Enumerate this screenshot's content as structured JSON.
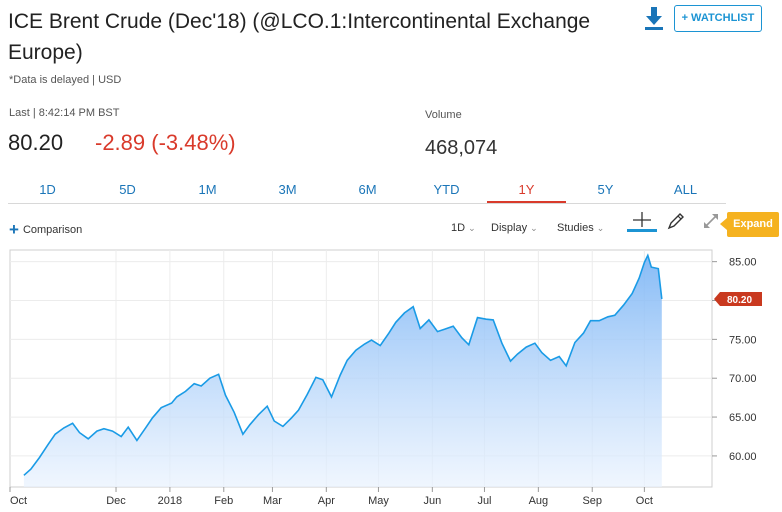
{
  "header": {
    "title": "ICE Brent Crude (Dec'18) (@LCO.1:Intercontinental Exchange Europe)",
    "note": "*Data is delayed | USD",
    "watchlist_label": "+ WATCHLIST",
    "download_icon": "download-icon"
  },
  "quote": {
    "last_label": "Last | 8:42:14 PM BST",
    "price": "80.20",
    "change": "-2.89 (-3.48%)",
    "volume_label": "Volume",
    "volume": "468,074",
    "down_color": "#d93a2b"
  },
  "range_tabs": {
    "items": [
      "1D",
      "5D",
      "1M",
      "3M",
      "6M",
      "YTD",
      "1Y",
      "5Y",
      "ALL"
    ],
    "active": "1Y"
  },
  "toolbar": {
    "comparison_label": "Comparison",
    "interval_label": "1D",
    "display_label": "Display",
    "studies_label": "Studies",
    "expand_label": "Expand",
    "icons": [
      "crosshair-icon",
      "pencil-icon",
      "expand-arrows-icon"
    ]
  },
  "chart_data": {
    "type": "area",
    "title": "",
    "xlabel": "",
    "ylabel": "",
    "ylim": [
      56,
      86.5
    ],
    "y_ticks": [
      60,
      65,
      70,
      75,
      80,
      85
    ],
    "y_tick_labels": [
      "60.00",
      "65.00",
      "70.00",
      "75.00",
      "80.00",
      "85.00"
    ],
    "x_tick_labels": [
      "Oct",
      "Dec",
      "2018",
      "Feb",
      "Mar",
      "Apr",
      "May",
      "Jun",
      "Jul",
      "Aug",
      "Sep",
      "Oct"
    ],
    "grid": true,
    "line_color": "#1a9be6",
    "fill_color": "#7ab4f5",
    "last_value_label": "80.20",
    "last_value_color": "#c9391f",
    "x": [
      "2017-10-09",
      "2017-10-13",
      "2017-10-18",
      "2017-10-23",
      "2017-10-27",
      "2017-11-01",
      "2017-11-06",
      "2017-11-10",
      "2017-11-15",
      "2017-11-20",
      "2017-11-24",
      "2017-11-29",
      "2017-12-04",
      "2017-12-08",
      "2017-12-13",
      "2017-12-18",
      "2017-12-22",
      "2017-12-27",
      "2018-01-02",
      "2018-01-05",
      "2018-01-10",
      "2018-01-15",
      "2018-01-19",
      "2018-01-24",
      "2018-01-29",
      "2018-02-02",
      "2018-02-07",
      "2018-02-12",
      "2018-02-16",
      "2018-02-21",
      "2018-02-26",
      "2018-03-02",
      "2018-03-07",
      "2018-03-12",
      "2018-03-16",
      "2018-03-21",
      "2018-03-26",
      "2018-03-30",
      "2018-04-04",
      "2018-04-09",
      "2018-04-13",
      "2018-04-18",
      "2018-04-23",
      "2018-04-27",
      "2018-05-02",
      "2018-05-07",
      "2018-05-11",
      "2018-05-16",
      "2018-05-21",
      "2018-05-25",
      "2018-05-30",
      "2018-06-04",
      "2018-06-08",
      "2018-06-13",
      "2018-06-18",
      "2018-06-22",
      "2018-06-27",
      "2018-07-02",
      "2018-07-06",
      "2018-07-11",
      "2018-07-16",
      "2018-07-20",
      "2018-07-25",
      "2018-07-30",
      "2018-08-03",
      "2018-08-08",
      "2018-08-13",
      "2018-08-17",
      "2018-08-22",
      "2018-08-27",
      "2018-08-31",
      "2018-09-05",
      "2018-09-10",
      "2018-09-14",
      "2018-09-19",
      "2018-09-24",
      "2018-09-28",
      "2018-10-01",
      "2018-10-03",
      "2018-10-05",
      "2018-10-09",
      "2018-10-11"
    ],
    "series": [
      {
        "values": [
          57.5,
          58.3,
          59.8,
          61.5,
          62.8,
          63.6,
          64.2,
          63.0,
          62.2,
          63.2,
          63.5,
          63.2,
          62.5,
          63.7,
          62.0,
          63.6,
          64.9,
          66.2,
          66.8,
          67.6,
          68.3,
          69.3,
          69.0,
          70.0,
          70.5,
          67.8,
          65.6,
          62.8,
          64.0,
          65.3,
          66.4,
          64.5,
          63.8,
          64.9,
          65.9,
          67.9,
          70.1,
          69.8,
          67.6,
          70.4,
          72.3,
          73.6,
          74.4,
          74.9,
          74.2,
          75.8,
          77.2,
          78.4,
          79.2,
          76.4,
          77.5,
          76.0,
          76.3,
          76.7,
          75.2,
          74.3,
          77.8,
          77.6,
          77.5,
          74.5,
          72.2,
          73.1,
          74.0,
          74.5,
          73.3,
          72.3,
          72.8,
          71.6,
          74.6,
          75.8,
          77.4,
          77.4,
          77.9,
          78.1,
          79.4,
          80.9,
          82.9,
          84.9,
          85.8,
          84.3,
          84.1,
          80.2
        ]
      }
    ]
  }
}
